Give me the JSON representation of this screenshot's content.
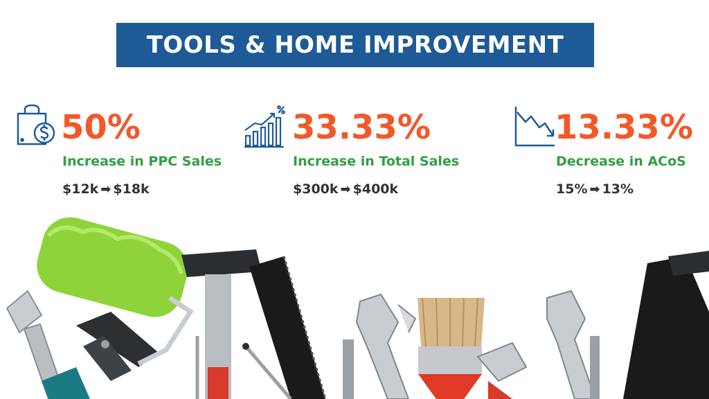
{
  "banner": {
    "title": "TOOLS & HOME IMPROVEMENT"
  },
  "stats": [
    {
      "icon": "shopping-bag-dollar-icon",
      "value": "50%",
      "label": "Increase in PPC Sales",
      "from": "$12k",
      "to": "$18k"
    },
    {
      "icon": "bar-chart-growth-icon",
      "value": "33.33%",
      "label": "Increase in Total Sales",
      "from": "$300k",
      "to": "$400k"
    },
    {
      "icon": "chart-decline-icon",
      "value": "13.33%",
      "label": "Decrease in ACoS",
      "from": "15%",
      "to": "13%"
    }
  ],
  "colors": {
    "banner": "#1d5a96",
    "value": "#f2582a",
    "label": "#2ea043",
    "change": "#333333",
    "icon": "#1d5a96"
  },
  "illustration": "tools-border"
}
